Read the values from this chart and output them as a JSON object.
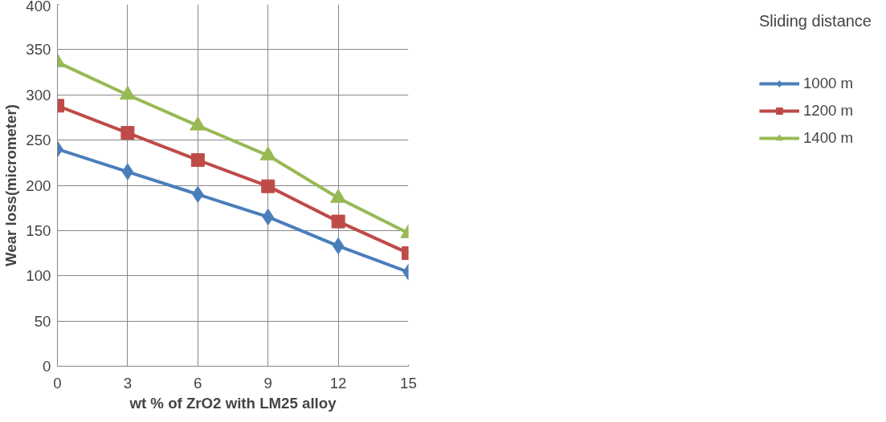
{
  "chart_data": {
    "type": "line",
    "xlabel": "wt % of ZrO2 with LM25 alloy",
    "ylabel": "Wear loss(micrometer)",
    "legend_title": "Sliding distance",
    "x": [
      0,
      3,
      6,
      9,
      12,
      15
    ],
    "xlim": [
      0,
      15
    ],
    "xticks": [
      0,
      3,
      6,
      9,
      12,
      15
    ],
    "ylim": [
      0,
      400
    ],
    "yticks": [
      0,
      50,
      100,
      150,
      200,
      250,
      300,
      350,
      400
    ],
    "grid": true,
    "legend": "right",
    "line_style": "solid",
    "series": [
      {
        "name": "1000 m",
        "color": "#4a7ebb",
        "marker": "diamond",
        "values": [
          240,
          215,
          190,
          165,
          133,
          104
        ]
      },
      {
        "name": "1200 m",
        "color": "#be4b48",
        "marker": "square",
        "values": [
          288,
          258,
          228,
          199,
          160,
          125
        ]
      },
      {
        "name": "1400 m",
        "color": "#98b954",
        "marker": "triangle",
        "values": [
          336,
          300,
          266,
          233,
          186,
          147
        ]
      }
    ]
  }
}
